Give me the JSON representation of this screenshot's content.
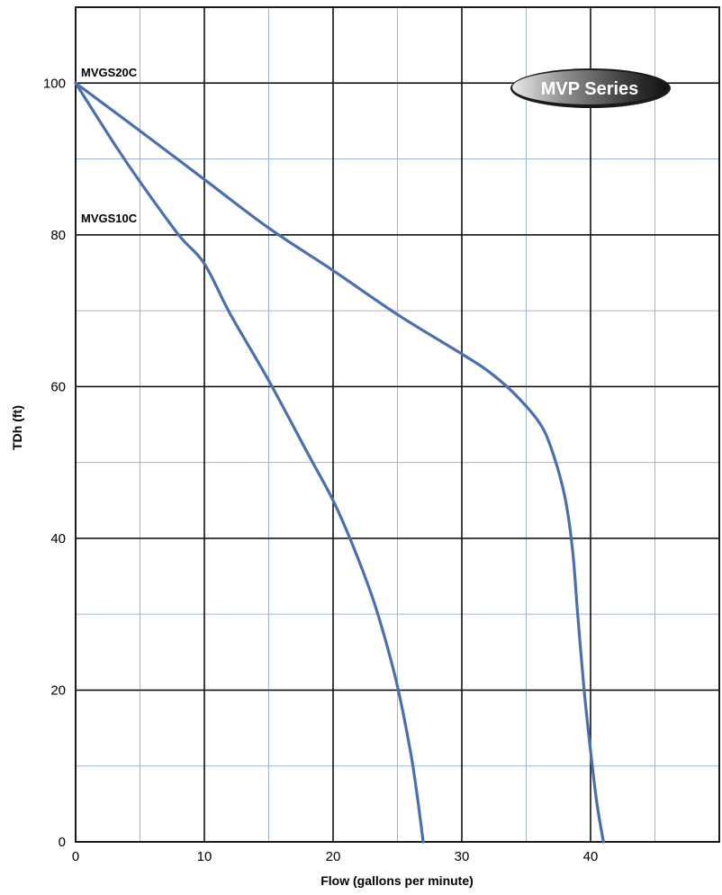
{
  "chart_data": {
    "type": "line",
    "title": "",
    "xlabel": "Flow (gallons per minute)",
    "ylabel": "TDh (ft)",
    "xlim": [
      0,
      50
    ],
    "ylim": [
      0,
      110
    ],
    "x_ticks": [
      0,
      10,
      20,
      30,
      40
    ],
    "y_ticks": [
      0,
      20,
      40,
      60,
      80,
      100
    ],
    "grid": true,
    "badge": "MVP Series",
    "colors": {
      "line": "#4a6fae",
      "minor_grid": "#9db4d6",
      "major_grid": "#000000"
    },
    "series": [
      {
        "name": "MVGS20C",
        "x": [
          0,
          5,
          10,
          15,
          20,
          25,
          30,
          32,
          34,
          36,
          37,
          38,
          38.6,
          39.0,
          39.5,
          40.0,
          40.5,
          41.0
        ],
        "y": [
          100,
          93.7,
          87.3,
          80.9,
          75.3,
          69.5,
          64.3,
          62.1,
          59.2,
          55.3,
          51.6,
          45.5,
          38.5,
          30,
          20,
          12,
          5,
          0
        ]
      },
      {
        "name": "MVGS10C",
        "x": [
          0,
          3,
          5,
          8,
          10,
          12,
          15,
          18,
          20,
          21.5,
          23,
          24,
          25,
          26,
          26.5,
          27
        ],
        "y": [
          100,
          92,
          87,
          80,
          76.2,
          69.6,
          60.8,
          51.3,
          45,
          39.2,
          32.5,
          27,
          20.5,
          12,
          6.5,
          0
        ]
      }
    ]
  }
}
